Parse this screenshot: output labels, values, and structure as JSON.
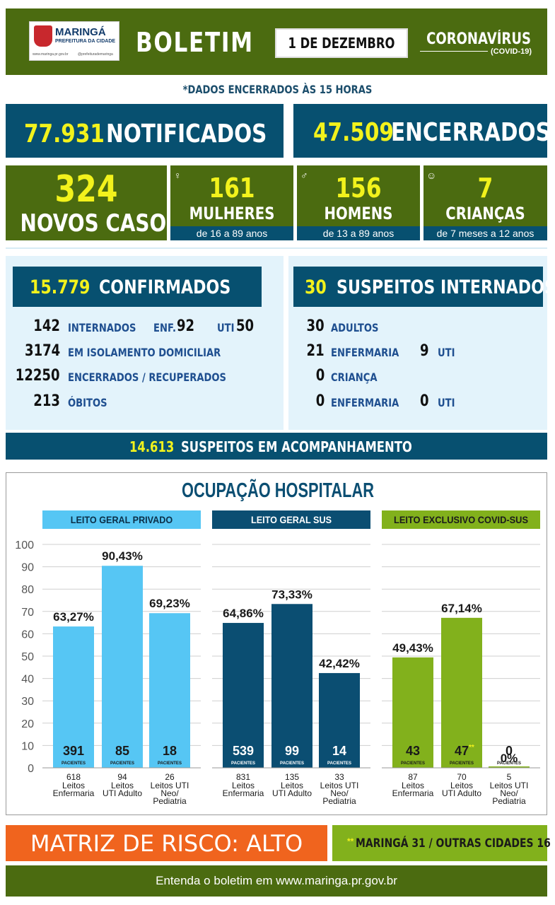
{
  "header": {
    "logo_city": "MARINGÁ",
    "logo_sub": "PREFEITURA DA CIDADE",
    "logo_url": "www.maringa.pr.gov.br",
    "logo_social": "@prefeiturademaringa",
    "title": "BOLETIM",
    "date": "1 DE DEZEMBRO",
    "topic": "CORONAVÍRUS",
    "topic_sub": "(COVID-19)"
  },
  "note": "*DADOS ENCERRADOS ÀS 15 HORAS",
  "totals": {
    "notified_value": "77.931",
    "notified_label": "NOTIFICADOS",
    "closed_value": "47.509",
    "closed_label": "ENCERRADOS"
  },
  "new_cases": {
    "value": "324",
    "label": "NOVOS CASOS",
    "women_value": "161",
    "women_label": "MULHERES",
    "women_range": "de 16 a 89 anos",
    "men_value": "156",
    "men_label": "HOMENS",
    "men_range": "de 13 a 89 anos",
    "children_value": "7",
    "children_label": "CRIANÇAS",
    "children_range": "de 7 meses a 12 anos"
  },
  "confirmed": {
    "value": "15.779",
    "label": "CONFIRMADOS",
    "hosp_value": "142",
    "hosp_label": "INTERNADOS",
    "enf_label": "ENF.",
    "enf_value": "92",
    "uti_label": "UTI",
    "uti_value": "50",
    "isol_value": "3174",
    "isol_label": "EM ISOLAMENTO DOMICILIAR",
    "rec_value": "12250",
    "rec_label": "ENCERRADOS / RECUPERADOS",
    "deaths_value": "213",
    "deaths_label": "ÓBITOS"
  },
  "suspects": {
    "value": "30",
    "label": "SUSPEITOS INTERNADOS",
    "adults_value": "30",
    "adults_label": "ADULTOS",
    "adult_enf_value": "21",
    "adult_enf_label": "ENFERMARIA",
    "adult_uti_value": "9",
    "adult_uti_label": "UTI",
    "child_value": "0",
    "child_label": "CRIANÇA",
    "child_enf_value": "0",
    "child_enf_label": "ENFERMARIA",
    "child_uti_value": "0",
    "child_uti_label": "UTI"
  },
  "monitoring": {
    "value": "14.613",
    "label": "SUSPEITOS EM ACOMPANHAMENTO"
  },
  "colors": {
    "dark_green": "#4b6b10",
    "teal": "#075070",
    "light_blue_bar": "#56c6f4",
    "dark_blue_bar": "#0b4e72",
    "green_bar": "#82b11c",
    "risk_orange": "#f0641e",
    "yellow": "#f2f21c"
  },
  "chart_data": {
    "type": "bar",
    "title": "OCUPAÇÃO HOSPITALAR",
    "ylim": [
      0,
      100
    ],
    "yticks": [
      "0",
      "10",
      "20",
      "30",
      "40",
      "50",
      "60",
      "70",
      "80",
      "90",
      "100"
    ],
    "patients_label": "PACIENTES",
    "groups": [
      {
        "name": "LEITO GERAL PRIVADO",
        "color": "#56c6f4",
        "bars": [
          {
            "value": 63.27,
            "label": "63,27%",
            "patients": "391",
            "beds": "618",
            "cat": [
              "Leitos",
              "Enfermaria"
            ]
          },
          {
            "value": 90.43,
            "label": "90,43%",
            "patients": "85",
            "beds": "94",
            "cat": [
              "Leitos",
              "UTI Adulto"
            ]
          },
          {
            "value": 69.23,
            "label": "69,23%",
            "patients": "18",
            "beds": "26",
            "cat": [
              "Leitos UTI",
              "Neo/",
              "Pediatria"
            ]
          }
        ]
      },
      {
        "name": "LEITO GERAL SUS",
        "color": "#0b4e72",
        "bars": [
          {
            "value": 64.86,
            "label": "64,86%",
            "patients": "539",
            "beds": "831",
            "cat": [
              "Leitos",
              "Enfermaria"
            ]
          },
          {
            "value": 73.33,
            "label": "73,33%",
            "patients": "99",
            "beds": "135",
            "cat": [
              "Leitos",
              "UTI Adulto"
            ]
          },
          {
            "value": 42.42,
            "label": "42,42%",
            "patients": "14",
            "beds": "33",
            "cat": [
              "Leitos UTI",
              "Neo/",
              "Pediatria"
            ]
          }
        ]
      },
      {
        "name": "LEITO EXCLUSIVO COVID-SUS",
        "color": "#82b11c",
        "bars": [
          {
            "value": 49.43,
            "label": "49,43%",
            "patients": "43",
            "beds": "87",
            "cat": [
              "Leitos",
              "Enfermaria"
            ]
          },
          {
            "value": 67.14,
            "label": "67,14%",
            "patients": "47",
            "mark": "**",
            "beds": "70",
            "cat": [
              "Leitos",
              "UTI Adulto"
            ]
          },
          {
            "value": 0,
            "label": "0%",
            "patients": "0",
            "beds": "5",
            "cat": [
              "Leitos UTI",
              "Neo/",
              "Pediatria"
            ]
          }
        ]
      }
    ]
  },
  "risk": {
    "label": "MATRIZ DE RISCO: ALTO",
    "note_mark": "**",
    "note": "MARINGÁ 31 / OUTRAS CIDADES 16"
  },
  "footer": "Entenda o boletim em www.maringa.pr.gov.br"
}
